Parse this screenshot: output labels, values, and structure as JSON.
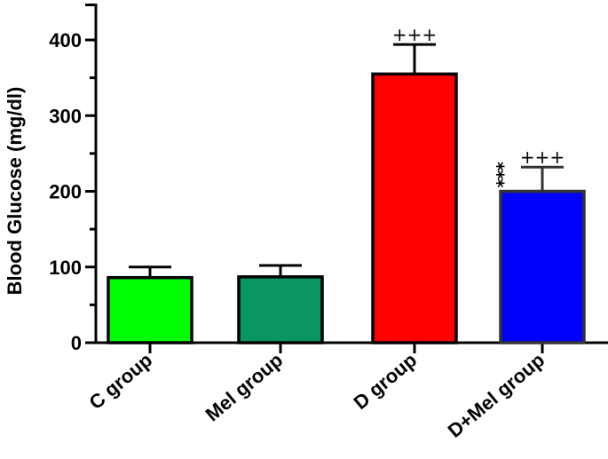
{
  "chart_data": {
    "type": "bar",
    "title": "",
    "xlabel": "",
    "ylabel": "Blood Glucose (mg/dl)",
    "ylim": [
      0,
      450
    ],
    "yticks": [
      0,
      100,
      200,
      300,
      400
    ],
    "ytick_labels": [
      "0",
      "100",
      "200",
      "300",
      "400"
    ],
    "categories": [
      "C  group",
      "Mel group",
      "D group",
      "D+Mel group"
    ],
    "values": [
      86,
      87,
      355,
      200
    ],
    "error_upper": [
      100,
      102,
      394,
      232
    ],
    "colors": [
      "#00ff00",
      "#0a9660",
      "#ff0000",
      "#0000ff"
    ],
    "annotations": [
      {
        "category": "D group",
        "plus": "+++",
        "stars": ""
      },
      {
        "category": "D+Mel group",
        "plus": "+++",
        "stars": "***"
      }
    ],
    "grid": false,
    "legend": "none"
  }
}
